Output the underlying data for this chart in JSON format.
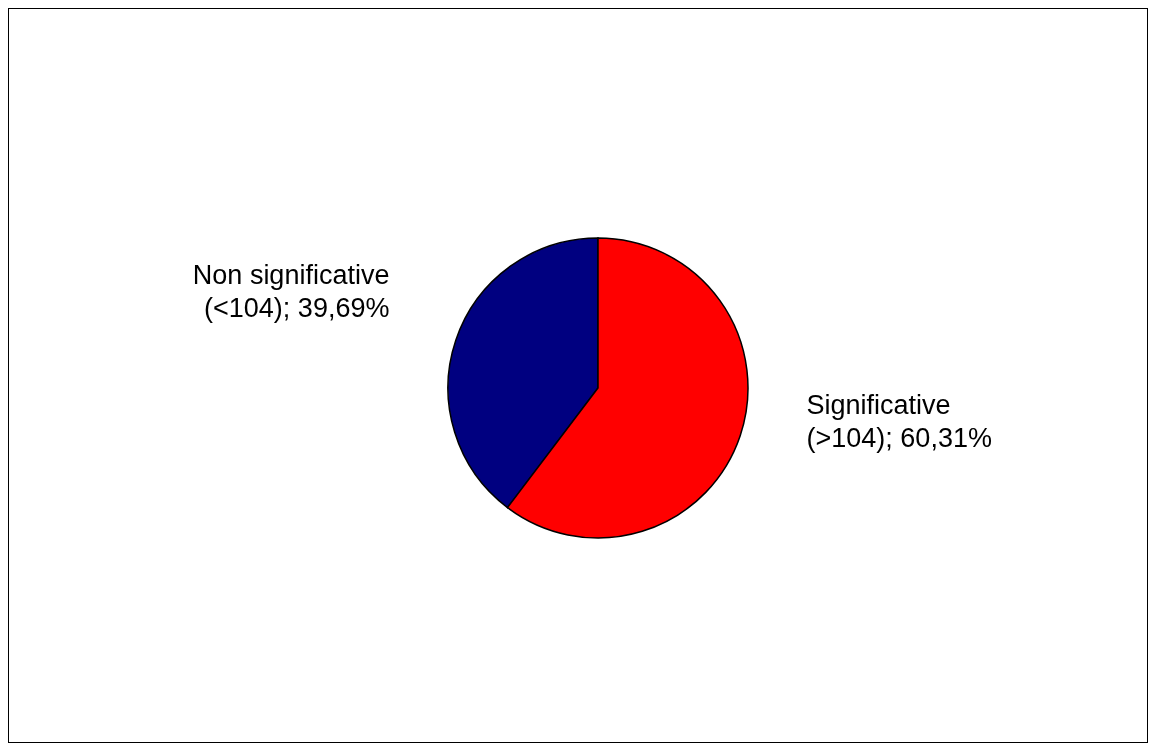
{
  "chart_data": {
    "type": "pie",
    "categories": [
      "Non significative (<104)",
      "Significative (>104)"
    ],
    "values": [
      39.69,
      60.31
    ],
    "value_labels": [
      "39,69%",
      "60,31%"
    ],
    "colors": [
      "#000080",
      "#ff0000"
    ]
  }
}
